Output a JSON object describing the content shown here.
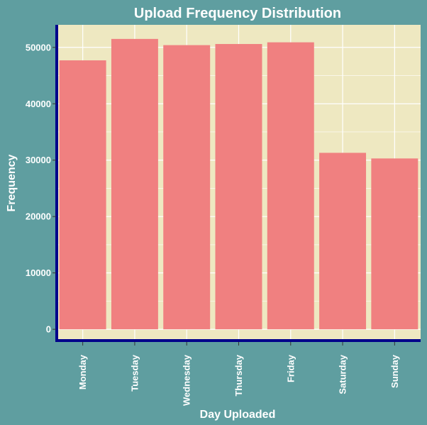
{
  "colors": {
    "background": "#5f9ea0",
    "panel": "#eee8c1",
    "grid": "#ffffff",
    "bar": "#f08080",
    "axis_line": "#00008b",
    "text": "#ffffff"
  },
  "chart_data": {
    "type": "bar",
    "title": "Upload Frequency Distribution",
    "xlabel": "Day Uploaded",
    "ylabel": "Frequency",
    "categories": [
      "Monday",
      "Tuesday",
      "Wednesday",
      "Thursday",
      "Friday",
      "Saturday",
      "Sunday"
    ],
    "values": [
      47700,
      51500,
      50400,
      50600,
      50900,
      31300,
      30300
    ],
    "ylim": [
      -2000,
      54000
    ],
    "yticks": [
      0,
      10000,
      20000,
      30000,
      40000,
      50000
    ],
    "ytick_labels": [
      "0",
      "10000",
      "20000",
      "30000",
      "40000",
      "50000"
    ],
    "grid": true,
    "x_tick_rotation": "vertical"
  }
}
